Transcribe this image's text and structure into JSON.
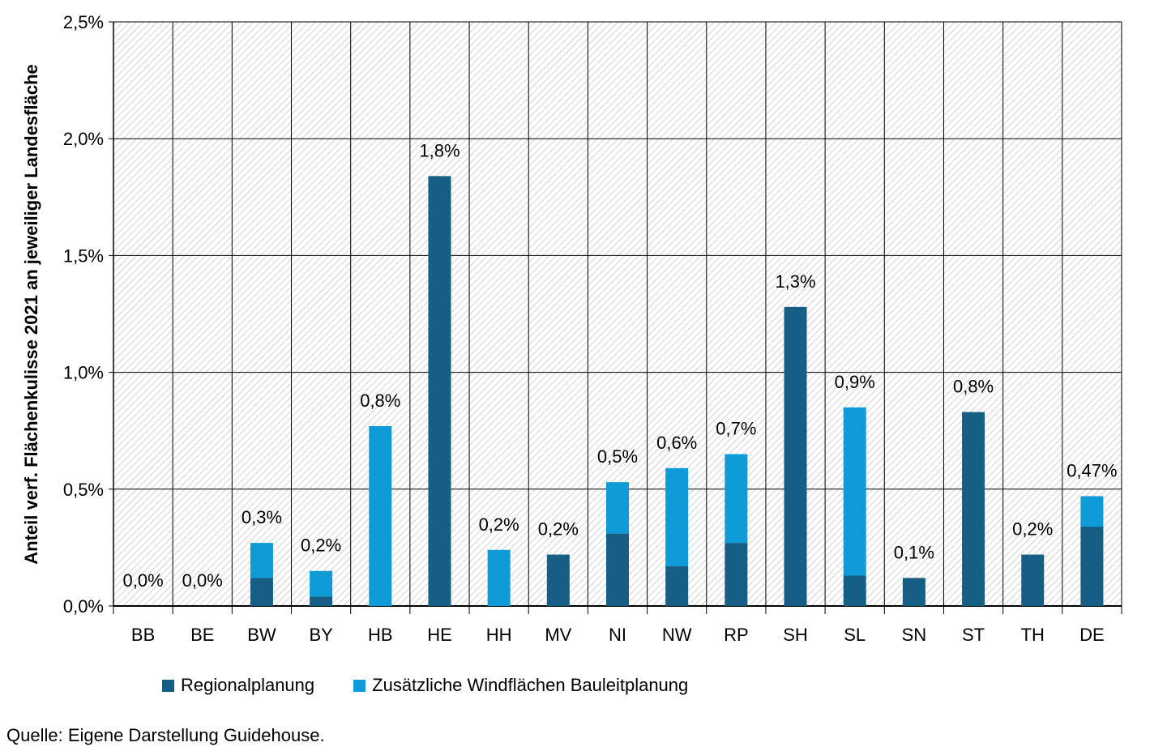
{
  "chart_data": {
    "type": "bar",
    "stacked": true,
    "categories": [
      "BB",
      "BE",
      "BW",
      "BY",
      "HB",
      "HE",
      "HH",
      "MV",
      "NI",
      "NW",
      "RP",
      "SH",
      "SL",
      "SN",
      "ST",
      "TH",
      "DE"
    ],
    "series": [
      {
        "name": "Regionalplanung",
        "color": "#165E83",
        "values": [
          0.0,
          0.0,
          0.12,
          0.04,
          0.0,
          1.84,
          0.0,
          0.22,
          0.31,
          0.17,
          0.27,
          1.28,
          0.13,
          0.12,
          0.83,
          0.22,
          0.34
        ]
      },
      {
        "name": "Zusätzliche Windflächen Bauleitplanung",
        "color": "#0F9BD7",
        "values": [
          0.0,
          0.0,
          0.15,
          0.11,
          0.77,
          0.0,
          0.24,
          0.0,
          0.22,
          0.42,
          0.38,
          0.0,
          0.72,
          0.0,
          0.0,
          0.0,
          0.13
        ]
      }
    ],
    "data_labels": [
      "0,0%",
      "0,0%",
      "0,3%",
      "0,2%",
      "0,8%",
      "1,8%",
      "0,2%",
      "0,2%",
      "0,5%",
      "0,6%",
      "0,7%",
      "1,3%",
      "0,9%",
      "0,1%",
      "0,8%",
      "0,2%",
      "0,47%"
    ],
    "ylabel": "Anteil verf. Flächenkulisse 2021 an jeweiliger Landesfläche",
    "xlabel": "",
    "ylim": [
      0,
      2.5
    ],
    "yticks": [
      0,
      0.5,
      1.0,
      1.5,
      2.0,
      2.5
    ],
    "ytick_labels": [
      "0,0%",
      "0,5%",
      "1,0%",
      "1,5%",
      "2,0%",
      "2,5%"
    ],
    "grid": true,
    "legend_position": "bottom"
  },
  "legend": {
    "regional": "Regionalplanung",
    "additional": "Zusätzliche Windflächen Bauleitplanung"
  },
  "source": "Quelle: Eigene Darstellung Guidehouse."
}
